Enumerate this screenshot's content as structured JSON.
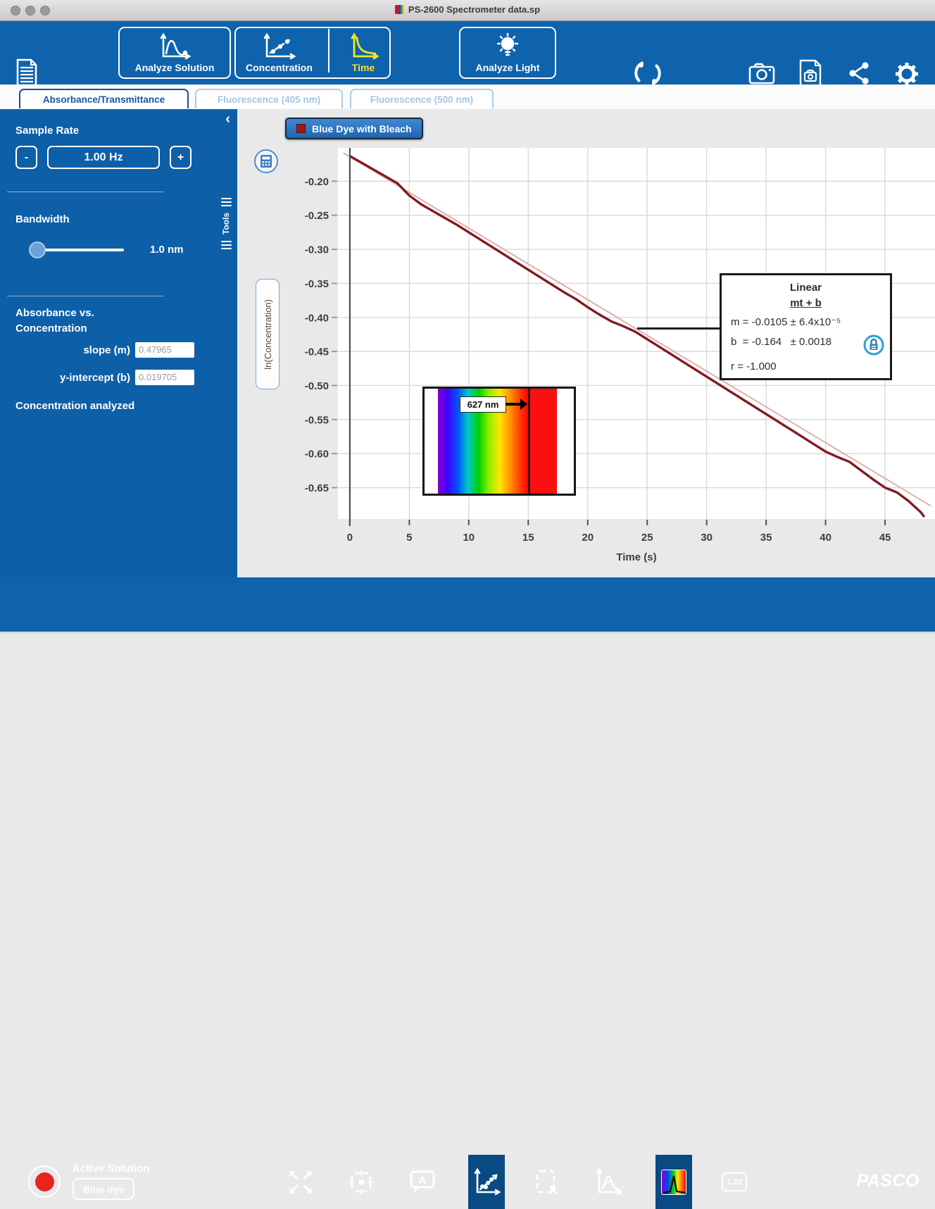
{
  "window": {
    "title": "PS-2600 Spectrometer data.sp"
  },
  "toolbar": {
    "analyze_solution": "Analyze Solution",
    "concentration": "Concentration",
    "time": "Time",
    "analyze_light": "Analyze Light"
  },
  "icons": {
    "toolbar": [
      "journal-icon",
      "analyze-solution-icon",
      "concentration-icon",
      "time-icon",
      "analyze-light-icon",
      "sync-icon",
      "camera-icon",
      "journal-snapshot-icon",
      "share-icon",
      "settings-gear-icon"
    ],
    "sidebar": [
      "collapse-chevron-icon",
      "tools-handle-icon"
    ],
    "chart": [
      "calculator-icon",
      "lock-icon"
    ],
    "bottom": [
      "record-icon",
      "scale-to-fit-icon",
      "crosshair-icon",
      "annotation-icon",
      "curve-fit-icon",
      "selection-box-icon",
      "peak-analysis-icon",
      "spectrum-tool-icon",
      "data-display-icon"
    ]
  },
  "tabs": [
    {
      "label": "Absorbance/Transmittance",
      "active": true
    },
    {
      "label": "Fluorescence (405 nm)",
      "active": false
    },
    {
      "label": "Fluorescence (500 nm)",
      "active": false
    }
  ],
  "sidebar": {
    "collapse": "‹",
    "tools_label": "Tools",
    "sample_rate": {
      "label": "Sample Rate",
      "minus": "-",
      "value": "1.00 Hz",
      "plus": "+"
    },
    "bandwidth": {
      "label": "Bandwidth",
      "value": "1.0 nm"
    },
    "abs_vs_conc": {
      "title_line1": "Absorbance vs.",
      "title_line2": "Concentration",
      "slope_label": "slope (m)",
      "slope_value": "0.47965",
      "intercept_label": "y-intercept (b)",
      "intercept_value": "0.019705",
      "footer": "Concentration analyzed"
    }
  },
  "chart": {
    "legend_label": "Blue Dye with Bleach",
    "annotation": {
      "title": "Linear",
      "equation": "mt + b",
      "line_m": "m = -0.0105 ± 6.4x10⁻⁵",
      "line_b": "b  = -0.164   ± 0.0018",
      "line_r": "r = -1.000"
    },
    "wavelength_marker": {
      "label": "627 nm"
    }
  },
  "chart_data": {
    "type": "line",
    "title": "",
    "xlabel": "Time (s)",
    "ylabel": "ln(Concentration)",
    "xlim": [
      -1.0,
      49.2
    ],
    "ylim": [
      -0.696,
      -0.151
    ],
    "xticks": [
      0,
      5,
      10,
      15,
      20,
      25,
      30,
      35,
      40,
      45
    ],
    "yticks": [
      -0.2,
      -0.25,
      -0.3,
      -0.35,
      -0.4,
      -0.45,
      -0.5,
      -0.55,
      -0.6,
      -0.65
    ],
    "grid": true,
    "legend_position": "top-left",
    "series": [
      {
        "name": "Blue Dye with Bleach",
        "color": "#841a1f",
        "x": [
          0,
          1,
          2,
          3,
          4,
          5,
          6,
          7,
          8,
          9,
          10,
          11,
          12,
          13,
          14,
          15,
          16,
          17,
          18,
          19,
          20,
          21,
          22,
          23,
          24,
          25,
          26,
          27,
          28,
          29,
          30,
          31,
          32,
          33,
          34,
          35,
          36,
          37,
          38,
          39,
          40,
          41,
          42,
          43,
          44,
          45,
          46,
          47,
          48,
          48.3
        ],
        "y": [
          -0.163,
          -0.173,
          -0.183,
          -0.193,
          -0.203,
          -0.221,
          -0.234,
          -0.244,
          -0.254,
          -0.264,
          -0.275,
          -0.286,
          -0.297,
          -0.308,
          -0.319,
          -0.33,
          -0.341,
          -0.352,
          -0.363,
          -0.373,
          -0.385,
          -0.396,
          -0.406,
          -0.413,
          -0.421,
          -0.432,
          -0.443,
          -0.454,
          -0.465,
          -0.476,
          -0.487,
          -0.498,
          -0.509,
          -0.52,
          -0.531,
          -0.542,
          -0.553,
          -0.564,
          -0.575,
          -0.586,
          -0.597,
          -0.605,
          -0.612,
          -0.625,
          -0.638,
          -0.65,
          -0.657,
          -0.67,
          -0.686,
          -0.693
        ]
      }
    ],
    "fit": {
      "type": "Linear",
      "equation": "mt + b",
      "m": -0.0105,
      "m_err": "6.4x10⁻⁵",
      "b": -0.164,
      "b_err": 0.0018,
      "r": -1.0
    }
  },
  "bottom": {
    "active_solution_label": "Active Solution",
    "active_solution_value": "Blue dye",
    "numbers_tool": "1.23",
    "brand": "PASCO"
  },
  "colors": {
    "accent_blue": "#0e63ac",
    "sidebar_blue": "#0d5fa8",
    "selected_tool": "#0a4a84",
    "record_red": "#e8251c",
    "curve_dark_red": "#841a1f",
    "fit_pink": "#e2aeae",
    "time_yellow": "#f3e32a",
    "legend_swatch": "#9b1b17"
  }
}
